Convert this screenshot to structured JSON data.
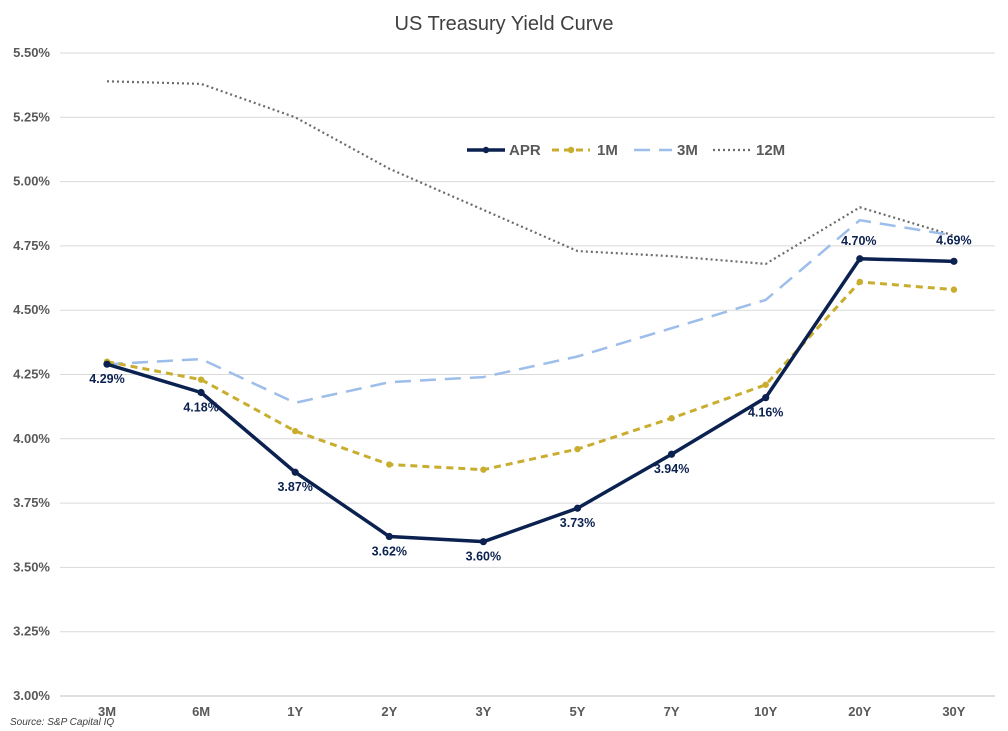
{
  "chart_data": {
    "type": "line",
    "title": "US Treasury Yield Curve",
    "categories": [
      "3M",
      "6M",
      "1Y",
      "2Y",
      "3Y",
      "5Y",
      "7Y",
      "10Y",
      "20Y",
      "30Y"
    ],
    "ylim": [
      3.0,
      5.5
    ],
    "yticks": [
      3.0,
      3.25,
      3.5,
      3.75,
      4.0,
      4.25,
      4.5,
      4.75,
      5.0,
      5.25,
      5.5
    ],
    "ytick_labels": [
      "3.00%",
      "3.25%",
      "3.50%",
      "3.75%",
      "4.00%",
      "4.25%",
      "4.50%",
      "4.75%",
      "5.00%",
      "5.25%",
      "5.50%"
    ],
    "grid": true,
    "legend_position": "top-right",
    "series": [
      {
        "name": "APR",
        "color": "#0b2150",
        "style": "solid",
        "markers": true,
        "values": [
          4.29,
          4.18,
          3.87,
          3.62,
          3.6,
          3.73,
          3.94,
          4.16,
          4.7,
          4.69
        ],
        "labels": [
          "4.29%",
          "4.18%",
          "3.87%",
          "3.62%",
          "3.60%",
          "3.73%",
          "3.94%",
          "4.16%",
          "4.70%",
          "4.69%"
        ]
      },
      {
        "name": "1M",
        "color": "#c9ad2f",
        "style": "dashed",
        "markers": true,
        "values": [
          4.3,
          4.23,
          4.03,
          3.9,
          3.88,
          3.96,
          4.08,
          4.21,
          4.61,
          4.58
        ]
      },
      {
        "name": "3M",
        "color": "#9dbdea",
        "style": "longdash",
        "markers": false,
        "values": [
          4.29,
          4.31,
          4.14,
          4.22,
          4.24,
          4.32,
          4.43,
          4.54,
          4.85,
          4.79
        ]
      },
      {
        "name": "12M",
        "color": "#6b6b6b",
        "style": "dotted",
        "markers": false,
        "values": [
          5.39,
          5.38,
          5.25,
          5.05,
          4.89,
          4.73,
          4.71,
          4.68,
          4.9,
          4.79
        ]
      }
    ]
  },
  "source": "Source: S&P Capital IQ"
}
